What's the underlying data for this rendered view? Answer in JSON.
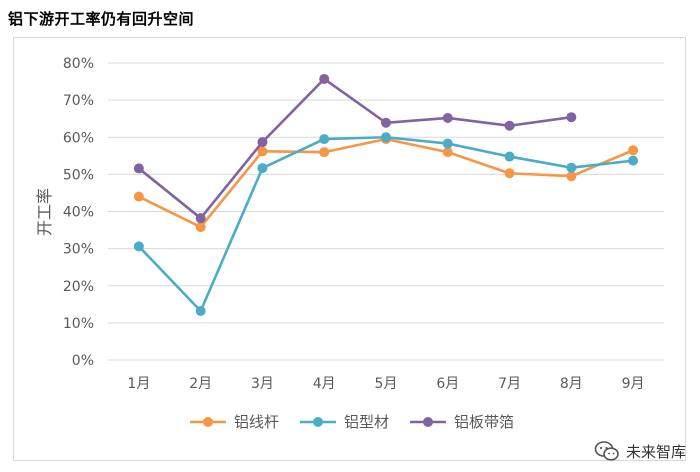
{
  "title": "铝下游开工率仍有回升空间",
  "watermark": "未来智库",
  "chart_data": {
    "type": "line",
    "categories": [
      "1月",
      "2月",
      "3月",
      "4月",
      "5月",
      "6月",
      "7月",
      "8月",
      "9月"
    ],
    "ylabel": "开工率",
    "ylim": [
      0,
      80
    ],
    "yticks": [
      "0%",
      "10%",
      "20%",
      "30%",
      "40%",
      "50%",
      "60%",
      "70%",
      "80%"
    ],
    "grid": true,
    "legend_position": "bottom",
    "series": [
      {
        "name": "铝线杆",
        "color": "#f79646",
        "values": [
          44,
          35.8,
          56.2,
          56,
          59.5,
          56,
          50.3,
          49.5,
          56.5
        ]
      },
      {
        "name": "铝型材",
        "color": "#4bacc6",
        "values": [
          30.6,
          13.2,
          51.7,
          59.5,
          60,
          58.3,
          54.8,
          51.8,
          53.7
        ]
      },
      {
        "name": "铝板带箔",
        "color": "#8064a2",
        "values": [
          51.6,
          38.2,
          58.7,
          75.7,
          63.9,
          65.2,
          63.1,
          65.4,
          null
        ]
      }
    ]
  }
}
